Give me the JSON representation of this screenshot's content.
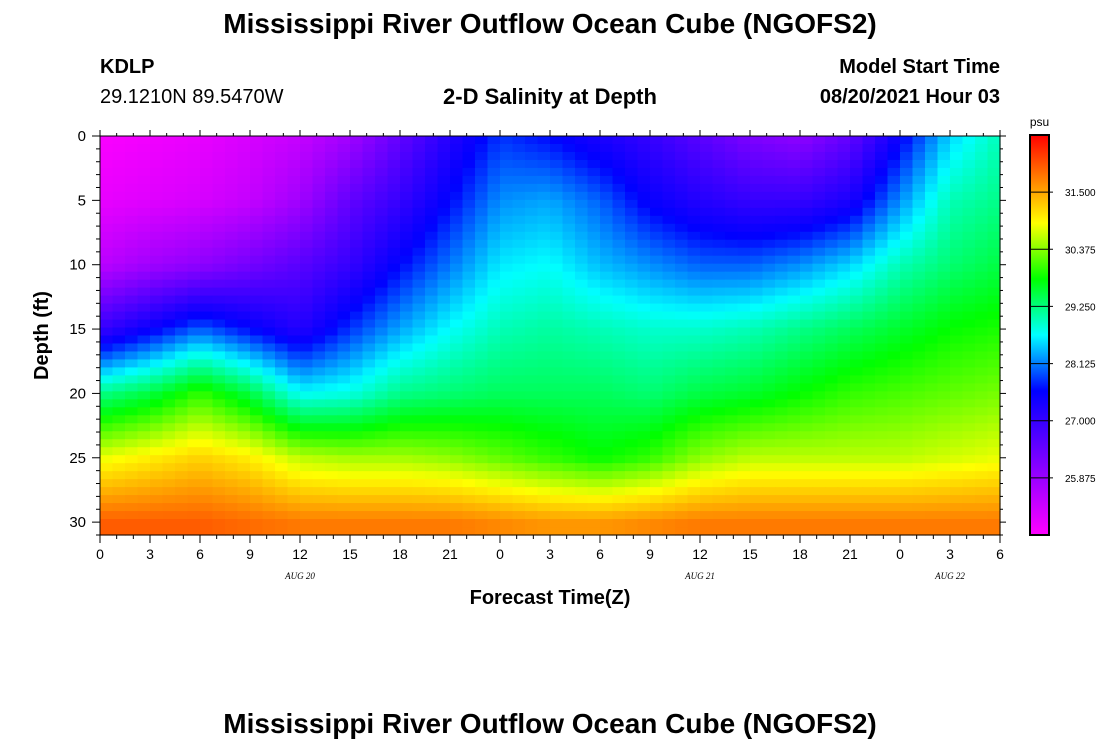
{
  "header": {
    "title": "Mississippi River Outflow Ocean Cube (NGOFS2)",
    "station": "KDLP",
    "coordinates": "29.1210N  89.5470W",
    "subtitle": "2-D Salinity at Depth",
    "model_start_label": "Model Start Time",
    "model_start_value": "08/20/2021 Hour 03"
  },
  "footer": {
    "title": "Mississippi River Outflow Ocean Cube (NGOFS2)"
  },
  "chart_data": {
    "type": "heatmap",
    "title": "2-D Salinity at Depth",
    "xlabel": "Forecast Time(Z)",
    "ylabel": "Depth (ft)",
    "x_range_hours": [
      0,
      54
    ],
    "ylim": [
      0,
      31
    ],
    "x_ticks": [
      "0",
      "3",
      "6",
      "9",
      "12",
      "15",
      "18",
      "21",
      "0",
      "3",
      "6",
      "9",
      "12",
      "15",
      "18",
      "21",
      "0",
      "3",
      "6"
    ],
    "date_labels": [
      {
        "label": "AUG 20",
        "hour": 12
      },
      {
        "label": "AUG 21",
        "hour": 36
      },
      {
        "label": "AUG 22",
        "hour": 51
      }
    ],
    "y_ticks": [
      0,
      5,
      10,
      15,
      20,
      25,
      30
    ],
    "colorbar": {
      "unit": "psu",
      "range": [
        24.75,
        32.625
      ],
      "ticks": [
        "31.500",
        "30.375",
        "29.250",
        "28.125",
        "27.000",
        "25.875"
      ],
      "tick_values": [
        31.5,
        30.375,
        29.25,
        28.125,
        27.0,
        25.875
      ]
    },
    "salinity_field": {
      "description": "salinity (psu) by depth (ft) at forecast hours",
      "hours": [
        0,
        3,
        6,
        9,
        12,
        15,
        18,
        21,
        24,
        27,
        30,
        33,
        36,
        39,
        42,
        45,
        48,
        51,
        54
      ],
      "depths": [
        0,
        5,
        10,
        15,
        20,
        25,
        30
      ],
      "values": [
        [
          24.8,
          24.9,
          25.0,
          25.2,
          25.4,
          25.8,
          26.5,
          27.2,
          27.8,
          27.6,
          27.3,
          27.0,
          26.6,
          26.2,
          26.0,
          26.5,
          27.5,
          28.5,
          29.0
        ],
        [
          25.0,
          25.1,
          25.2,
          25.4,
          25.8,
          26.5,
          27.0,
          27.6,
          28.2,
          28.3,
          28.0,
          27.5,
          27.2,
          27.0,
          27.0,
          27.3,
          28.2,
          29.0,
          29.2
        ],
        [
          25.5,
          25.8,
          26.0,
          26.3,
          26.6,
          27.0,
          27.6,
          28.1,
          28.6,
          28.7,
          28.4,
          28.2,
          28.0,
          28.0,
          28.2,
          28.5,
          29.0,
          29.3,
          29.5
        ],
        [
          27.0,
          27.5,
          28.0,
          27.6,
          27.2,
          27.8,
          28.3,
          28.7,
          29.0,
          29.1,
          29.0,
          28.9,
          28.9,
          29.0,
          29.2,
          29.4,
          29.6,
          29.8,
          29.9
        ],
        [
          29.2,
          29.5,
          30.0,
          29.5,
          28.7,
          28.8,
          29.2,
          29.3,
          29.4,
          29.4,
          29.4,
          29.3,
          29.5,
          29.6,
          29.8,
          30.0,
          30.1,
          30.2,
          30.3
        ],
        [
          30.8,
          31.0,
          31.2,
          31.0,
          30.6,
          30.5,
          30.5,
          30.4,
          30.2,
          30.0,
          29.8,
          30.0,
          30.4,
          30.6,
          30.6,
          30.6,
          30.6,
          30.7,
          30.8
        ],
        [
          32.0,
          32.0,
          32.0,
          31.9,
          31.8,
          31.8,
          31.8,
          31.8,
          31.7,
          31.6,
          31.6,
          31.7,
          31.8,
          31.8,
          31.8,
          31.8,
          31.8,
          31.8,
          31.8
        ]
      ]
    }
  }
}
